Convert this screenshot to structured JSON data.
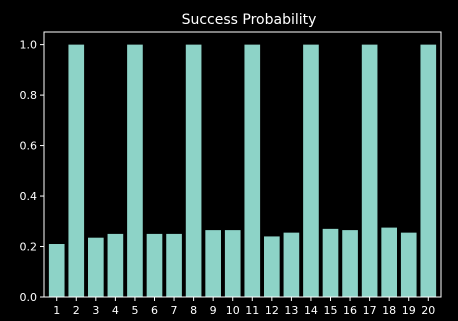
{
  "chart_data": {
    "type": "bar",
    "title": "Success Probability",
    "xlabel": "",
    "ylabel": "",
    "categories": [
      "1",
      "2",
      "3",
      "4",
      "5",
      "6",
      "7",
      "8",
      "9",
      "10",
      "11",
      "12",
      "13",
      "14",
      "15",
      "16",
      "17",
      "18",
      "19",
      "20"
    ],
    "values": [
      0.21,
      1.0,
      0.235,
      0.25,
      1.0,
      0.25,
      0.25,
      1.0,
      0.265,
      0.265,
      1.0,
      0.24,
      0.255,
      1.0,
      0.27,
      0.265,
      1.0,
      0.275,
      0.255,
      1.0
    ],
    "ylim": [
      0,
      1.05
    ],
    "yticks": [
      0.0,
      0.2,
      0.4,
      0.6,
      0.8,
      1.0
    ],
    "ytick_labels": [
      "0.0",
      "0.2",
      "0.4",
      "0.6",
      "0.8",
      "1.0"
    ],
    "grid": false,
    "bar_color": "#8dd3c7",
    "background_color": "#000000",
    "axis_color": "#ffffff"
  }
}
